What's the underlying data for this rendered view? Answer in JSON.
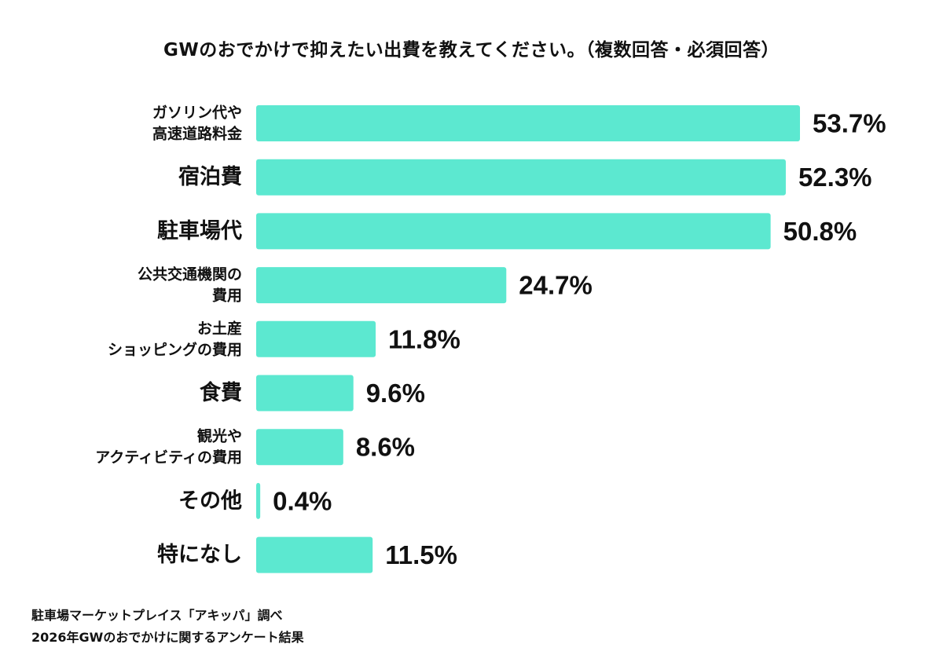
{
  "chart_data": {
    "type": "bar",
    "orientation": "horizontal",
    "title": "GWのおでかけで抑えたい出費を教えてください。（複数回答・必須回答）",
    "categories": [
      [
        "ガソリン代や",
        "高速道路料金"
      ],
      [
        "宿泊費"
      ],
      [
        "駐車場代"
      ],
      [
        "公共交通機関の",
        "費用"
      ],
      [
        "お土産",
        "ショッピングの費用"
      ],
      [
        "食費"
      ],
      [
        "観光や",
        "アクティビティの費用"
      ],
      [
        "その他"
      ],
      [
        "特になし"
      ]
    ],
    "values": [
      53.7,
      52.3,
      50.8,
      24.7,
      11.8,
      9.6,
      8.6,
      0.4,
      11.5
    ],
    "value_labels": [
      "53.7%",
      "52.3%",
      "50.8%",
      "24.7%",
      "11.8%",
      "9.6%",
      "8.6%",
      "0.4%",
      "11.5%"
    ],
    "unit": "%",
    "bar_color": "#5ce8d0",
    "grid": false,
    "legend": "none"
  },
  "source": {
    "line1": "駐車場マーケットプレイス「アキッパ」調べ",
    "line2": "2026年GWのおでかけに関するアンケート結果"
  }
}
